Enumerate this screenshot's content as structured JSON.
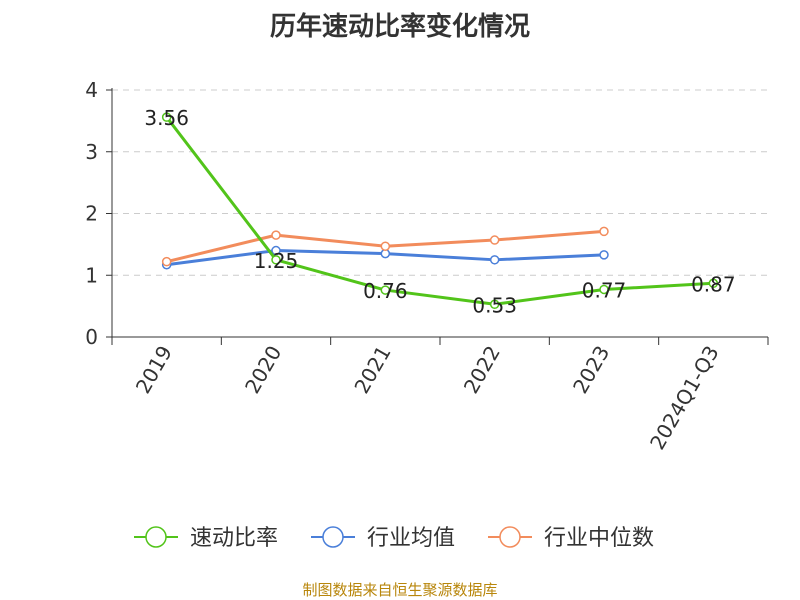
{
  "title": "历年速动比率变化情况",
  "footer": "制图数据来自恒生聚源数据库",
  "chart_data": {
    "type": "line",
    "categories": [
      "2019",
      "2020",
      "2021",
      "2022",
      "2023",
      "2024Q1-Q3"
    ],
    "ylim": [
      0,
      4
    ],
    "yticks": [
      0,
      1,
      2,
      3,
      4
    ],
    "grid": true,
    "legend_position": "bottom",
    "series": [
      {
        "name": "速动比率",
        "color": "#52c41a",
        "values": [
          3.56,
          1.25,
          0.76,
          0.53,
          0.77,
          0.87
        ],
        "labels": [
          "3.56",
          "1.25",
          "0.76",
          "0.53",
          "0.77",
          "0.87"
        ]
      },
      {
        "name": "行业均值",
        "color": "#4a7fd9",
        "values": [
          1.17,
          1.4,
          1.35,
          1.25,
          1.33,
          null
        ]
      },
      {
        "name": "行业中位数",
        "color": "#f28c5c",
        "values": [
          1.22,
          1.65,
          1.47,
          1.57,
          1.71,
          null
        ]
      }
    ]
  }
}
